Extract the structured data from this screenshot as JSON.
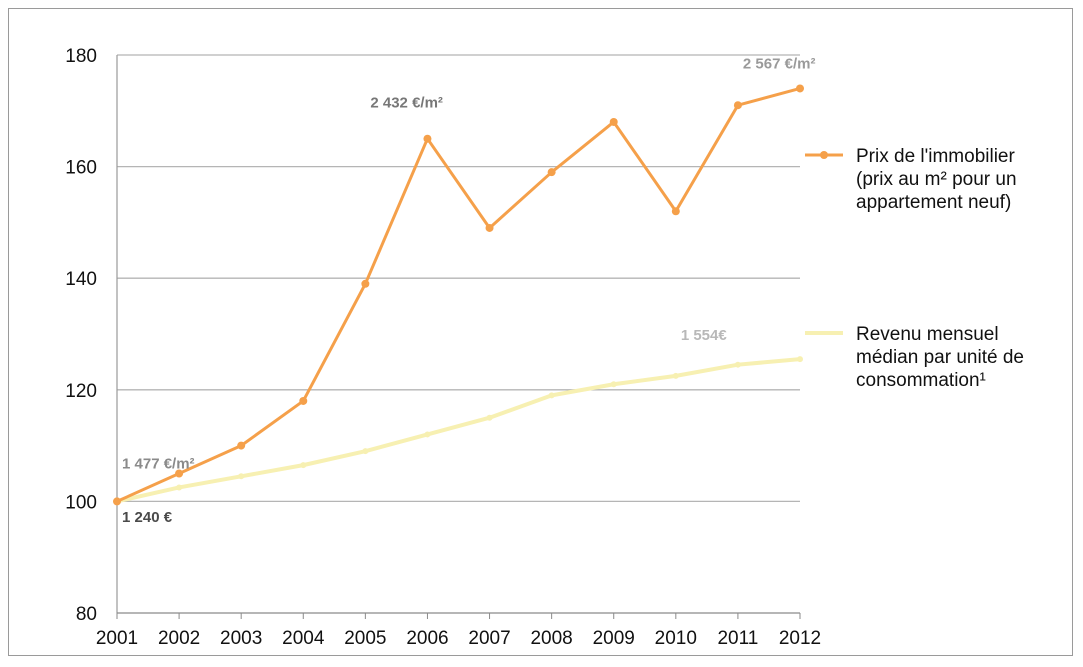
{
  "chart_data": {
    "type": "line",
    "x": [
      "2001",
      "2002",
      "2003",
      "2004",
      "2005",
      "2006",
      "2007",
      "2008",
      "2009",
      "2010",
      "2011",
      "2012"
    ],
    "ylim": [
      80,
      180
    ],
    "yticks": [
      "80",
      "100",
      "120",
      "140",
      "160",
      "180"
    ],
    "grid": true,
    "legend_position": "right",
    "series": [
      {
        "key": "prix",
        "legend": [
          "Prix de l'immobilier",
          "(prix au m² pour un",
          "appartement neuf)"
        ],
        "color": "#f5a04a",
        "values": [
          100,
          105,
          110,
          118,
          139,
          165,
          149,
          159,
          168,
          152,
          171,
          174
        ]
      },
      {
        "key": "revenu",
        "legend": [
          "Revenu mensuel",
          "médian par unité de",
          "consommation¹"
        ],
        "color": "#f7f0b2",
        "values": [
          100,
          102.5,
          104.5,
          106.5,
          109,
          112,
          115,
          119,
          121,
          122.5,
          124.5,
          125.5
        ]
      }
    ],
    "annotations": [
      {
        "text": "1 477 €/m²",
        "x": "2001",
        "y": 106.8,
        "color": "#8a8a8a"
      },
      {
        "text": "1 240 €",
        "x": "2001",
        "y": 97.2,
        "color": "#4a4a4a"
      },
      {
        "text": "2 432 €/m²",
        "x": "2005",
        "y": 171.5,
        "color": "#777777"
      },
      {
        "text": "2 567 €/m²",
        "x": "2011",
        "y": 178.5,
        "color": "#9a9a9a"
      },
      {
        "text": "1 554€",
        "x": "2010",
        "y": 129.8,
        "color": "#b8b8b8"
      }
    ]
  }
}
